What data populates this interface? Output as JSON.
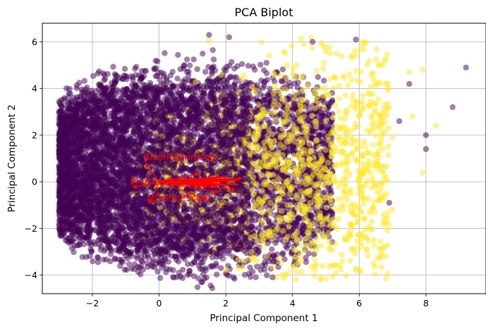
{
  "chart_data": {
    "type": "scatter",
    "title": "PCA Biplot",
    "xlabel": "Principal Component 1",
    "ylabel": "Principal Component 2",
    "xlim": [
      -3.5,
      9.8
    ],
    "ylim": [
      -4.8,
      6.8
    ],
    "xticks": [
      -2,
      0,
      2,
      4,
      6,
      8
    ],
    "xtick_labels": [
      "−2",
      "0",
      "2",
      "4",
      "6",
      "8"
    ],
    "yticks": [
      -4,
      -2,
      0,
      2,
      4,
      6
    ],
    "ytick_labels": [
      "−4",
      "−2",
      "0",
      "2",
      "4",
      "6"
    ],
    "grid": true,
    "colors": {
      "class_0": "#440154",
      "class_1": "#fde725",
      "loading": "#ff0000"
    },
    "point_alpha": 0.5,
    "outlier_points": [
      {
        "x": 9.2,
        "y": 4.9,
        "c": 0
      },
      {
        "x": 8.8,
        "y": 3.2,
        "c": 0
      },
      {
        "x": 8.0,
        "y": 2.0,
        "c": 0
      },
      {
        "x": 8.0,
        "y": 1.4,
        "c": 0
      },
      {
        "x": 7.9,
        "y": 0.4,
        "c": 1
      },
      {
        "x": 7.9,
        "y": 4.8,
        "c": 1
      },
      {
        "x": 7.5,
        "y": 4.7,
        "c": 1
      },
      {
        "x": 7.5,
        "y": 4.2,
        "c": 0
      },
      {
        "x": 6.7,
        "y": 5.0,
        "c": 1
      },
      {
        "x": 8.3,
        "y": 2.4,
        "c": 1
      },
      {
        "x": 7.6,
        "y": 2.8,
        "c": 1
      },
      {
        "x": 7.2,
        "y": 2.6,
        "c": 0
      },
      {
        "x": 7.0,
        "y": 1.9,
        "c": 1
      },
      {
        "x": 6.9,
        "y": -0.9,
        "c": 0
      },
      {
        "x": 7.0,
        "y": -1.2,
        "c": 1
      },
      {
        "x": 5.9,
        "y": 6.1,
        "c": 0
      },
      {
        "x": 5.0,
        "y": 5.6,
        "c": 1
      },
      {
        "x": 4.6,
        "y": 6.0,
        "c": 0
      },
      {
        "x": 2.1,
        "y": 6.2,
        "c": 0
      },
      {
        "x": 1.5,
        "y": 6.3,
        "c": 0
      },
      {
        "x": 3.8,
        "y": -4.0,
        "c": 1
      },
      {
        "x": 4.1,
        "y": -4.2,
        "c": 1
      },
      {
        "x": 3.4,
        "y": -4.1,
        "c": 0
      },
      {
        "x": 2.9,
        "y": -4.1,
        "c": 0
      },
      {
        "x": 5.5,
        "y": -3.4,
        "c": 1
      },
      {
        "x": 6.1,
        "y": -2.4,
        "c": 1
      },
      {
        "x": -3.0,
        "y": 1.3,
        "c": 0
      },
      {
        "x": -3.0,
        "y": -0.6,
        "c": 0
      }
    ],
    "loadings": [
      {
        "label": "AlcoholDrinking",
        "x": -0.4,
        "y": 0.8
      },
      {
        "label": "PhysicalActivity",
        "x": -0.8,
        "y": -0.25
      },
      {
        "label": "LifestyleScore",
        "x": -0.3,
        "y": -0.95
      },
      {
        "label": "",
        "x": 2.5,
        "y": 0.15
      },
      {
        "label": "",
        "x": 1.8,
        "y": -0.45
      },
      {
        "label": "",
        "x": 1.4,
        "y": -0.75
      },
      {
        "label": "",
        "x": 2.3,
        "y": -0.35
      },
      {
        "label": "",
        "x": 1.2,
        "y": 0.35
      }
    ]
  }
}
